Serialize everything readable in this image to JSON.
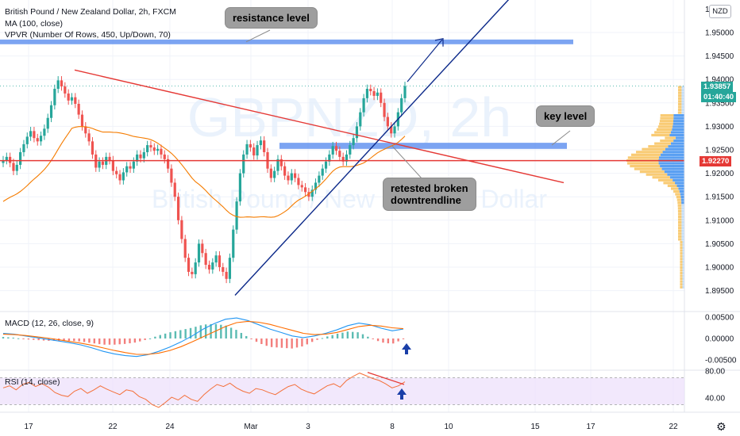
{
  "header": {
    "title": "British Pound / New Zealand Dollar, 2h, FXCM",
    "ma_label": "MA (100, close)",
    "vpvr_label": "VPVR (Number Of Rows, 450, Up/Down, 70)"
  },
  "watermark": {
    "symbol": "GBPNZD, 2h",
    "name": "British Pound / New Zealand Dollar"
  },
  "currency_button": "NZD",
  "price_badges": {
    "last_price": "1.93857",
    "countdown": "01:40:40",
    "level_price": "1.92270"
  },
  "annotations": {
    "resistance": "resistance level",
    "key": "key level",
    "retest_line1": "retested broken",
    "retest_line2": "downtrendline"
  },
  "indicators": {
    "macd_label": "MACD (12, 26, close, 9)",
    "rsi_label": "RSI (14, close)"
  },
  "colors": {
    "up_candle": "#26a69a",
    "down_candle": "#ef5350",
    "ma_line": "#f57c00",
    "downtrend": "#e53935",
    "uptrend": "#0d2a8a",
    "zone": "#5b8def",
    "level_line": "#e53935",
    "macd_line": "#2196f3",
    "signal_line": "#ff6d00",
    "rsi_line": "#f4703a",
    "rsi_band": "#ede0fb",
    "badge_green": "#26a69a",
    "badge_red": "#e53935"
  },
  "chart_data": {
    "type": "candlestick",
    "symbol": "GBPNZD",
    "timeframe": "2h",
    "y_axis": {
      "ticks": [
        "1.95000",
        "1.94500",
        "1.94000",
        "1.93500",
        "1.93000",
        "1.92500",
        "1.92000",
        "1.91500",
        "1.91000",
        "1.90500",
        "1.90000",
        "1.89500"
      ],
      "top_partial_tick": "1.9"
    },
    "x_axis": {
      "ticks": [
        "17",
        "22",
        "24",
        "Mar",
        "3",
        "8",
        "10",
        "15",
        "17",
        "22"
      ]
    },
    "close_prices": [
      1.9228,
      1.9235,
      1.9222,
      1.9205,
      1.9218,
      1.9245,
      1.9262,
      1.9278,
      1.929,
      1.9275,
      1.9268,
      1.928,
      1.9295,
      1.9318,
      1.9345,
      1.938,
      1.9398,
      1.9385,
      1.937,
      1.9355,
      1.9362,
      1.9348,
      1.9325,
      1.93,
      1.9285,
      1.9268,
      1.924,
      1.9212,
      1.9225,
      1.9218,
      1.9235,
      1.9228,
      1.9205,
      1.9198,
      1.9185,
      1.9202,
      1.9215,
      1.921,
      1.9225,
      1.924,
      1.9232,
      1.9245,
      1.926,
      1.9255,
      1.9248,
      1.9252,
      1.924,
      1.923,
      1.921,
      1.918,
      1.915,
      1.91,
      1.906,
      1.902,
      1.899,
      1.8985,
      1.901,
      1.905,
      1.903,
      1.9005,
      1.8995,
      1.901,
      1.9025,
      1.9,
      1.899,
      1.8975,
      1.902,
      1.908,
      1.914,
      1.92,
      1.924,
      1.9262,
      1.9255,
      1.9238,
      1.926,
      1.927,
      1.9245,
      1.921,
      1.919,
      1.9205,
      1.923,
      1.9215,
      1.9195,
      1.9185,
      1.92,
      1.919,
      1.9175,
      1.917,
      1.916,
      1.915,
      1.9165,
      1.918,
      1.9195,
      1.921,
      1.9225,
      1.924,
      1.9258,
      1.9248,
      1.9235,
      1.9225,
      1.924,
      1.926,
      1.9275,
      1.93,
      1.933,
      1.936,
      1.938,
      1.9375,
      1.9365,
      1.9372,
      1.935,
      1.932,
      1.93,
      1.9285,
      1.93,
      1.933,
      1.936,
      1.9386
    ],
    "ma_period": 100,
    "levels": {
      "resistance_zone": [
        1.9475,
        1.9485
      ],
      "key_level_zone": [
        1.9252,
        1.9265
      ],
      "horizontal_level": 1.9227
    },
    "trendlines": {
      "downtrend": {
        "from": [
          "Feb 19",
          1.942
        ],
        "to": [
          "Mar 16",
          1.918
        ]
      },
      "uptrend": {
        "from": [
          "Feb 27",
          1.894
        ],
        "to": [
          "Mar 12",
          1.958
        ]
      },
      "projection_arrow": {
        "from": [
          "Mar 8",
          1.9395
        ],
        "to": [
          "Mar 10",
          1.9485
        ]
      }
    },
    "macd": {
      "ticks": [
        "0.00500",
        "0.00000",
        "-0.00500"
      ],
      "macd": [
        0.0012,
        0.001,
        0.0006,
        0.0002,
        -0.0002,
        -0.0006,
        -0.001,
        -0.0015,
        -0.0022,
        -0.003,
        -0.0036,
        -0.004,
        -0.0042,
        -0.0038,
        -0.003,
        -0.002,
        -0.0008,
        0.0006,
        0.0022,
        0.0035,
        0.0045,
        0.0048,
        0.0042,
        0.0032,
        0.0022,
        0.0014,
        0.0006,
        0.0002,
        0.0006,
        0.0012,
        0.002,
        0.003,
        0.0036,
        0.0032,
        0.0024,
        0.0018,
        0.0022
      ],
      "signal": [
        0.001,
        0.0009,
        0.0007,
        0.0004,
        0.0001,
        -0.0003,
        -0.0007,
        -0.0011,
        -0.0016,
        -0.0022,
        -0.0028,
        -0.0033,
        -0.0037,
        -0.0037,
        -0.0034,
        -0.0028,
        -0.0019,
        -0.0008,
        0.0004,
        0.0016,
        0.0028,
        0.0037,
        0.004,
        0.0038,
        0.0033,
        0.0026,
        0.0019,
        0.0012,
        0.0009,
        0.001,
        0.0014,
        0.0021,
        0.0028,
        0.0031,
        0.0029,
        0.0025,
        0.0023
      ]
    },
    "rsi": {
      "ticks": [
        "80.00",
        "40.00"
      ],
      "upper": 70,
      "lower": 30,
      "values": [
        55,
        58,
        52,
        60,
        63,
        57,
        61,
        56,
        48,
        44,
        42,
        50,
        54,
        47,
        52,
        58,
        53,
        49,
        45,
        52,
        50,
        42,
        38,
        30,
        26,
        33,
        41,
        37,
        44,
        38,
        35,
        45,
        53,
        60,
        57,
        62,
        55,
        50,
        47,
        54,
        52,
        48,
        45,
        51,
        57,
        60,
        53,
        49,
        46,
        52,
        58,
        61,
        56,
        66,
        72,
        77,
        73,
        69,
        66,
        61,
        55,
        58,
        64
      ]
    },
    "annotation_arrows": [
      "macd up arrow",
      "rsi up arrow"
    ]
  }
}
